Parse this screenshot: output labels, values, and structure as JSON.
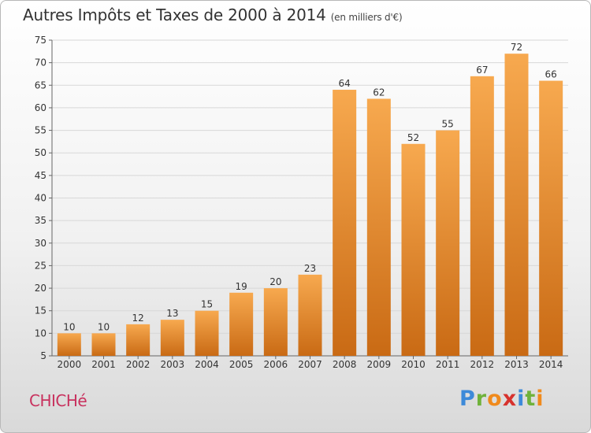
{
  "header": {
    "title": "Autres Impôts et Taxes de 2000 à 2014",
    "unit": "(en milliers d'€)"
  },
  "footer": {
    "commune": "CHICHé",
    "logo": {
      "letters": [
        "P",
        "r",
        "o",
        "x",
        "i",
        "t",
        "i"
      ],
      "colors": [
        "#3d8ad9",
        "#6fb23b",
        "#f08a1c",
        "#d7322d",
        "#3d8ad9",
        "#6fb23b",
        "#f08a1c"
      ]
    }
  },
  "colors": {
    "bar_light": "#f7a94f",
    "bar_dark": "#c96a14",
    "grid": "#d8d8d8",
    "axis": "#666666"
  },
  "chart_data": {
    "type": "bar",
    "categories": [
      "2000",
      "2001",
      "2002",
      "2003",
      "2004",
      "2005",
      "2006",
      "2007",
      "2008",
      "2009",
      "2010",
      "2011",
      "2012",
      "2013",
      "2014"
    ],
    "values": [
      10,
      10,
      12,
      13,
      15,
      19,
      20,
      23,
      64,
      62,
      52,
      55,
      67,
      72,
      66
    ],
    "ylim": [
      5,
      75
    ],
    "yticks": [
      5,
      10,
      15,
      20,
      25,
      30,
      35,
      40,
      45,
      50,
      55,
      60,
      65,
      70,
      75
    ],
    "grid": true,
    "data_labels": true
  }
}
